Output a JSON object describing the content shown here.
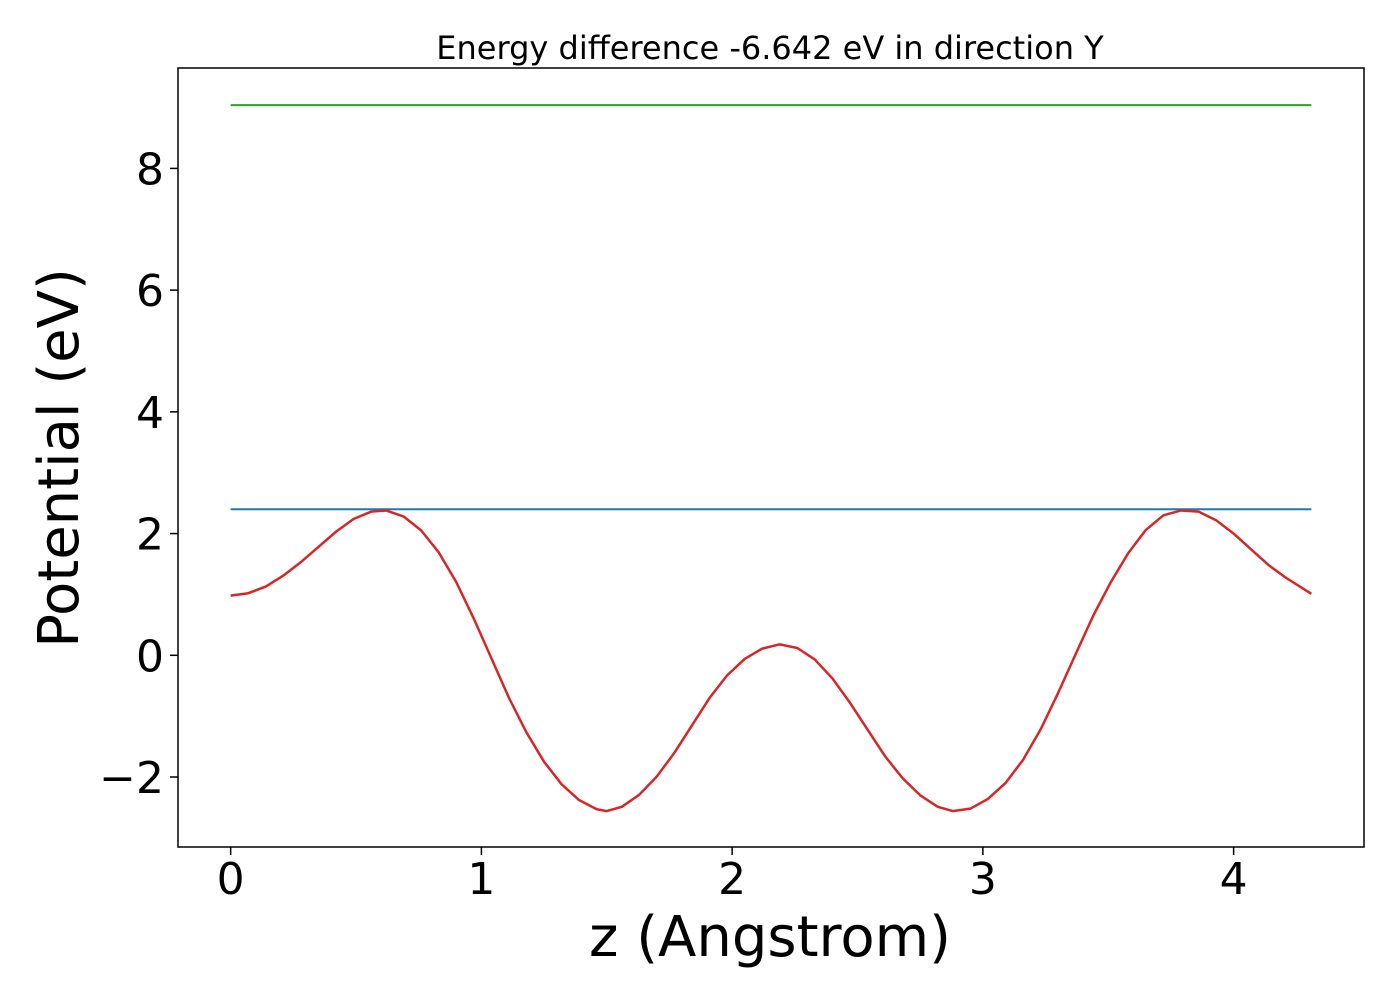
{
  "chart_data": {
    "type": "line",
    "title": "Energy difference -6.642 eV in direction Y",
    "xlabel": "z (Angstrom)",
    "ylabel": "Potential (eV)",
    "xlim": [
      -0.21,
      4.52
    ],
    "ylim": [
      -3.15,
      9.65
    ],
    "grid": false,
    "legend": "none",
    "x_ticks": [
      {
        "value": 0,
        "label": "0"
      },
      {
        "value": 1,
        "label": "1"
      },
      {
        "value": 2,
        "label": "2"
      },
      {
        "value": 3,
        "label": "3"
      },
      {
        "value": 4,
        "label": "4"
      }
    ],
    "y_ticks": [
      {
        "value": -2,
        "label": "−2"
      },
      {
        "value": 0,
        "label": "0"
      },
      {
        "value": 2,
        "label": "2"
      },
      {
        "value": 4,
        "label": "4"
      },
      {
        "value": 6,
        "label": "6"
      },
      {
        "value": 8,
        "label": "8"
      }
    ],
    "series": [
      {
        "color": "#2ca02c",
        "x": [
          0,
          4.31
        ],
        "y": [
          9.04,
          9.04
        ]
      },
      {
        "color": "#1f77b4",
        "x": [
          0,
          4.31
        ],
        "y": [
          2.4,
          2.4
        ]
      },
      {
        "color": "#d62728",
        "x": [
          0.0,
          0.07,
          0.14,
          0.21,
          0.28,
          0.35,
          0.42,
          0.49,
          0.56,
          0.62,
          0.69,
          0.76,
          0.83,
          0.9,
          0.97,
          1.04,
          1.11,
          1.18,
          1.25,
          1.32,
          1.39,
          1.46,
          1.5,
          1.56,
          1.63,
          1.7,
          1.77,
          1.84,
          1.91,
          1.98,
          2.05,
          2.12,
          2.19,
          2.26,
          2.33,
          2.4,
          2.47,
          2.54,
          2.61,
          2.68,
          2.75,
          2.82,
          2.88,
          2.95,
          3.02,
          3.09,
          3.16,
          3.23,
          3.3,
          3.37,
          3.44,
          3.51,
          3.58,
          3.65,
          3.72,
          3.79,
          3.86,
          3.93,
          4.0,
          4.07,
          4.14,
          4.21,
          4.31
        ],
        "y": [
          0.98,
          1.02,
          1.13,
          1.31,
          1.53,
          1.78,
          2.03,
          2.24,
          2.36,
          2.38,
          2.28,
          2.05,
          1.69,
          1.2,
          0.6,
          -0.05,
          -0.7,
          -1.27,
          -1.75,
          -2.12,
          -2.38,
          -2.53,
          -2.56,
          -2.49,
          -2.29,
          -1.99,
          -1.6,
          -1.15,
          -0.7,
          -0.33,
          -0.06,
          0.11,
          0.18,
          0.12,
          -0.07,
          -0.38,
          -0.78,
          -1.22,
          -1.66,
          -2.02,
          -2.3,
          -2.49,
          -2.56,
          -2.52,
          -2.36,
          -2.1,
          -1.72,
          -1.22,
          -0.62,
          0.02,
          0.65,
          1.2,
          1.68,
          2.06,
          2.3,
          2.38,
          2.36,
          2.22,
          2.0,
          1.74,
          1.48,
          1.27,
          1.01
        ]
      }
    ]
  }
}
